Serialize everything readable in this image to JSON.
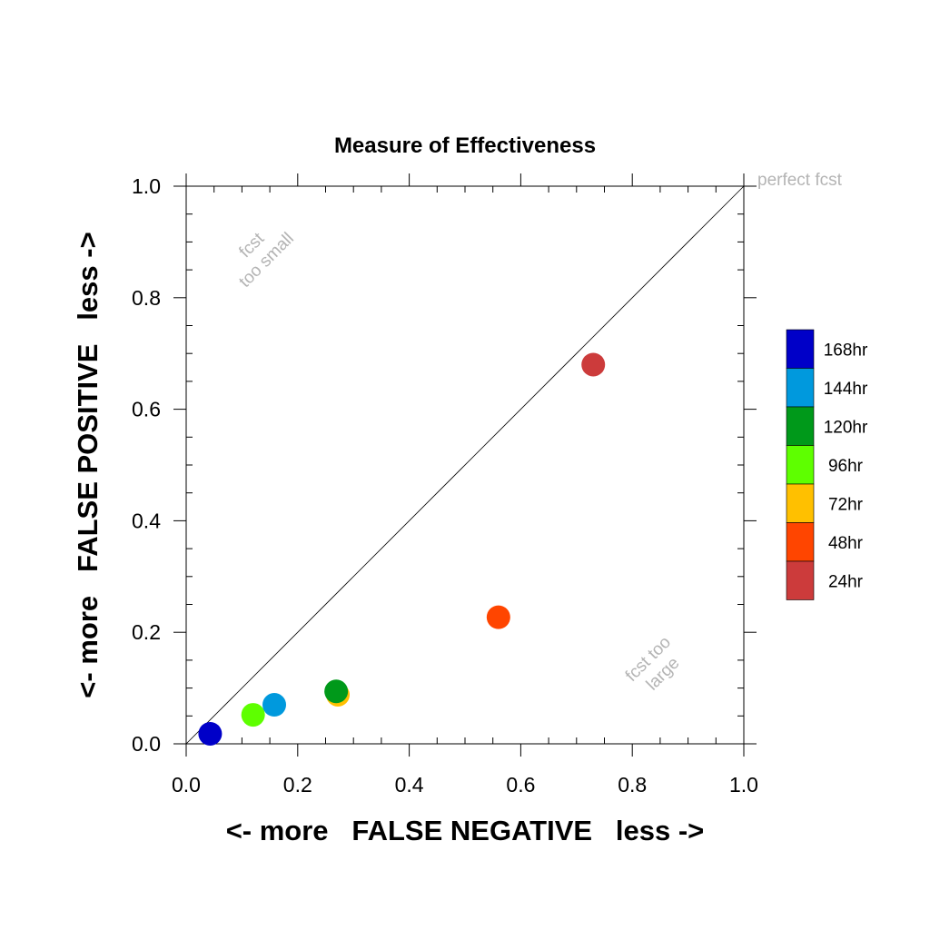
{
  "chart_data": {
    "type": "scatter",
    "title": "Measure of Effectiveness",
    "xlabel": "<- more   FALSE NEGATIVE   less ->",
    "ylabel": "<- more   FALSE POSITIVE   less ->",
    "xlim": [
      0.0,
      1.0
    ],
    "ylim": [
      0.0,
      1.0
    ],
    "major_ticks": [
      0.0,
      0.2,
      0.4,
      0.6,
      0.8,
      1.0
    ],
    "major_tick_labels": [
      "0.0",
      "0.2",
      "0.4",
      "0.6",
      "0.8",
      "1.0"
    ],
    "minor_tick_step": 0.05,
    "grid": false,
    "reference_line": {
      "from": [
        0,
        0
      ],
      "to": [
        1,
        1
      ]
    },
    "annotations": {
      "perfect": "perfect fcst",
      "too_small": [
        "fcst",
        "too small"
      ],
      "too_large": [
        "fcst too",
        "large"
      ]
    },
    "legend_position": "right",
    "series": [
      {
        "name": "24hr",
        "color": "#cc3b3b",
        "x": 0.73,
        "y": 0.68
      },
      {
        "name": "48hr",
        "color": "#ff4500",
        "x": 0.56,
        "y": 0.227
      },
      {
        "name": "72hr",
        "color": "#ffc000",
        "x": 0.272,
        "y": 0.088
      },
      {
        "name": "96hr",
        "color": "#5eff00",
        "x": 0.12,
        "y": 0.052
      },
      {
        "name": "120hr",
        "color": "#00991a",
        "x": 0.269,
        "y": 0.094
      },
      {
        "name": "144hr",
        "color": "#0099dd",
        "x": 0.158,
        "y": 0.07
      },
      {
        "name": "168hr",
        "color": "#0000c8",
        "x": 0.043,
        "y": 0.018
      }
    ],
    "legend_order": [
      "168hr",
      "144hr",
      "120hr",
      "96hr",
      "72hr",
      "48hr",
      "24hr"
    ]
  }
}
